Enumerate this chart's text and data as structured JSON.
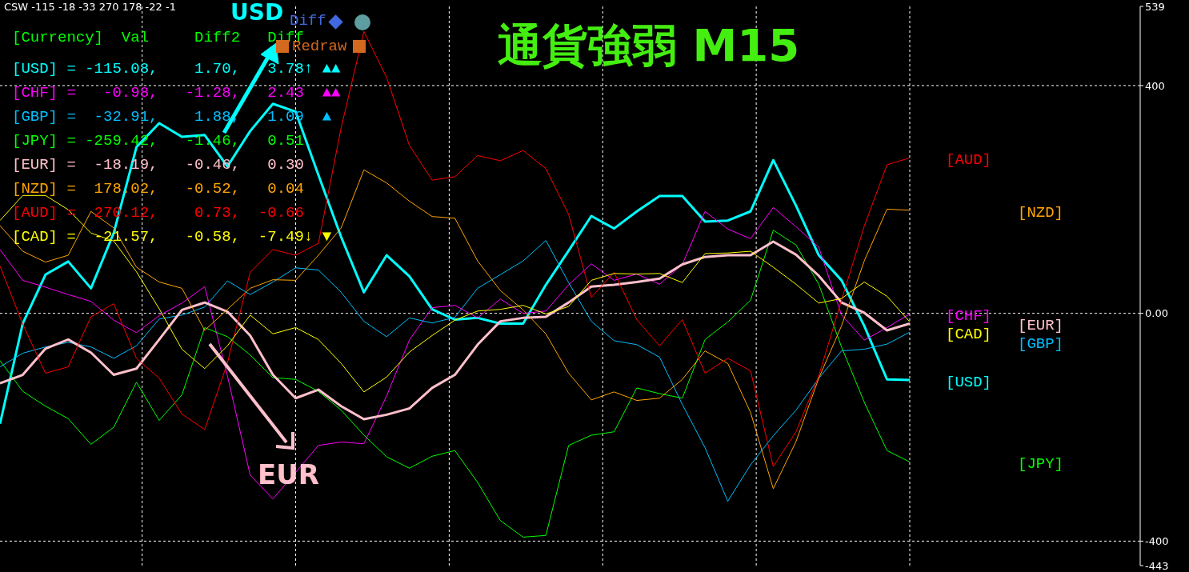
{
  "chart_data": {
    "type": "line",
    "title": "通貨強弱 M15",
    "categories": [
      null,
      null,
      null,
      null,
      null,
      null,
      null,
      null,
      null,
      null,
      null,
      null,
      null,
      null,
      null,
      null,
      null,
      null,
      null,
      null,
      null,
      null,
      null,
      null,
      null,
      null,
      null,
      null,
      null,
      null,
      null,
      null,
      null,
      null,
      null,
      null,
      null,
      null,
      null,
      null,
      null
    ],
    "series": [
      {
        "name": "[USD]",
        "color": "#00ffff",
        "values": [
          -194,
          -18,
          68,
          91,
          44,
          141,
          292,
          334,
          310,
          313,
          258,
          320,
          368,
          354,
          243,
          134,
          37,
          102,
          65,
          7,
          -11,
          -8,
          -18,
          -18,
          50,
          110,
          171,
          149,
          179,
          206,
          206,
          161,
          163,
          179,
          269,
          189,
          102,
          58,
          -22,
          -116,
          -117
        ]
      },
      {
        "name": "[CHF]",
        "color": "#ff00ff",
        "values": [
          112,
          58,
          46,
          33,
          21,
          -12,
          -34,
          -4,
          18,
          47,
          -110,
          -284,
          -326,
          -279,
          -232,
          -226,
          -229,
          -145,
          -47,
          10,
          14,
          -8,
          25,
          0,
          4,
          50,
          87,
          58,
          69,
          51,
          86,
          179,
          148,
          131,
          186,
          152,
          116,
          -3,
          -47,
          -25,
          -1
        ]
      },
      {
        "name": "[GBP]",
        "color": "#00bfff",
        "values": [
          -94,
          -70,
          -59,
          -51,
          -59,
          -79,
          -57,
          -10,
          -3,
          11,
          57,
          33,
          55,
          80,
          76,
          37,
          -14,
          -41,
          -8,
          -17,
          -7,
          44,
          68,
          92,
          128,
          54,
          -14,
          -48,
          -55,
          -77,
          -160,
          -236,
          -330,
          -266,
          -215,
          -170,
          -114,
          -66,
          -63,
          -54,
          -33
        ]
      },
      {
        "name": "[JPY]",
        "color": "#00ff00",
        "values": [
          -83,
          -137,
          -163,
          -185,
          -230,
          -200,
          -121,
          -188,
          -143,
          -25,
          -41,
          -73,
          -113,
          -116,
          -137,
          -170,
          -214,
          -252,
          -272,
          -251,
          -241,
          -297,
          -364,
          -393,
          -390,
          -232,
          -214,
          -208,
          -131,
          -141,
          -149,
          -46,
          -15,
          23,
          146,
          120,
          51,
          -59,
          -156,
          -241,
          -261
        ]
      },
      {
        "name": "[EUR]",
        "color": "#ffc0cb",
        "values": [
          -123,
          -108,
          -62,
          -46,
          -69,
          -108,
          -97,
          -46,
          6,
          19,
          3,
          -39,
          -108,
          -149,
          -134,
          -163,
          -186,
          -178,
          -167,
          -131,
          -108,
          -55,
          -14,
          -8,
          -6,
          19,
          47,
          50,
          55,
          61,
          86,
          99,
          102,
          102,
          126,
          103,
          66,
          19,
          1,
          -30,
          -18
        ]
      },
      {
        "name": "[NZD]",
        "color": "#ffa500",
        "values": [
          154,
          109,
          90,
          102,
          179,
          150,
          81,
          55,
          44,
          -30,
          7,
          44,
          59,
          58,
          102,
          150,
          252,
          229,
          197,
          170,
          167,
          92,
          40,
          6,
          -36,
          -105,
          -152,
          -138,
          -153,
          -149,
          -116,
          -66,
          -88,
          -174,
          -308,
          -225,
          -114,
          -22,
          92,
          183,
          181
        ]
      },
      {
        "name": "[AUD]",
        "color": "#ff0000",
        "values": [
          83,
          -19,
          -105,
          -94,
          -6,
          17,
          -79,
          -114,
          -177,
          -204,
          -87,
          72,
          112,
          102,
          123,
          326,
          495,
          414,
          295,
          234,
          240,
          277,
          268,
          286,
          254,
          174,
          28,
          72,
          -11,
          -57,
          -11,
          -105,
          -79,
          -101,
          -269,
          -208,
          -110,
          23,
          153,
          261,
          273
        ]
      },
      {
        "name": "[CAD]",
        "color": "#ffff00",
        "values": [
          163,
          207,
          207,
          182,
          141,
          127,
          73,
          8,
          -63,
          -97,
          -57,
          -3,
          -36,
          -25,
          -46,
          -88,
          -138,
          -112,
          -68,
          -39,
          -12,
          4,
          7,
          14,
          -1,
          12,
          58,
          70,
          69,
          70,
          54,
          105,
          106,
          109,
          81,
          51,
          18,
          26,
          55,
          30,
          -15
        ]
      }
    ],
    "ylim": [
      -443,
      539
    ],
    "yticks": [
      -443,
      -400,
      {
        "value": 0,
        "label": "0.00"
      },
      400,
      539
    ],
    "grid": true,
    "annotations": [
      "CSW -115 -18 -33 270 178 -22 -1",
      "[Currency]  Val     Diff2   Diff",
      "[USD] = -115.08,    1.70,   3.78↑ ▲▲",
      "[CHF] =   -0.98,   -1.28,   2.43  ▲▲",
      "[GBP] =  -32.91,    1.88,   1.09  ▲",
      "[JPY] = -259.42,   -1.46,   0.51",
      "[EUR] =  -18.19,   -0.46,   0.30",
      "[NZD] =  178.02,   -0.52,   0.04",
      "[AUD] =  270.12,    0.73,  -0.66",
      "[CAD] =  -21.57,   -0.58,  -7.49↓ ▼",
      "USD",
      "EUR",
      "Diff",
      "Redraw"
    ]
  }
}
